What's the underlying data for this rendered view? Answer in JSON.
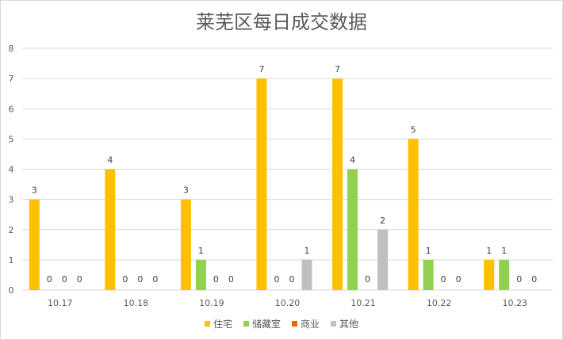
{
  "chart_data": {
    "type": "bar",
    "title": "莱芜区每日成交数据",
    "xlabel": "",
    "ylabel": "",
    "ylim": [
      0,
      8
    ],
    "yticks": [
      "0",
      "1",
      "2",
      "3",
      "4",
      "5",
      "6",
      "7",
      "8"
    ],
    "grid": "horizontal",
    "legend_position": "bottom",
    "categories": [
      "10.17",
      "10.18",
      "10.19",
      "10.20",
      "10.21",
      "10.22",
      "10.23"
    ],
    "series": [
      {
        "name": "住宅",
        "color": "#FFC000",
        "values": [
          3,
          4,
          3,
          7,
          7,
          5,
          1
        ]
      },
      {
        "name": "储藏室",
        "color": "#92D050",
        "values": [
          0,
          0,
          1,
          0,
          4,
          1,
          1
        ]
      },
      {
        "name": "商业",
        "color": "#E36C09",
        "values": [
          0,
          0,
          0,
          0,
          0,
          0,
          0
        ]
      },
      {
        "name": "其他",
        "color": "#BFBFBF",
        "values": [
          0,
          0,
          0,
          1,
          2,
          0,
          0
        ]
      }
    ]
  }
}
